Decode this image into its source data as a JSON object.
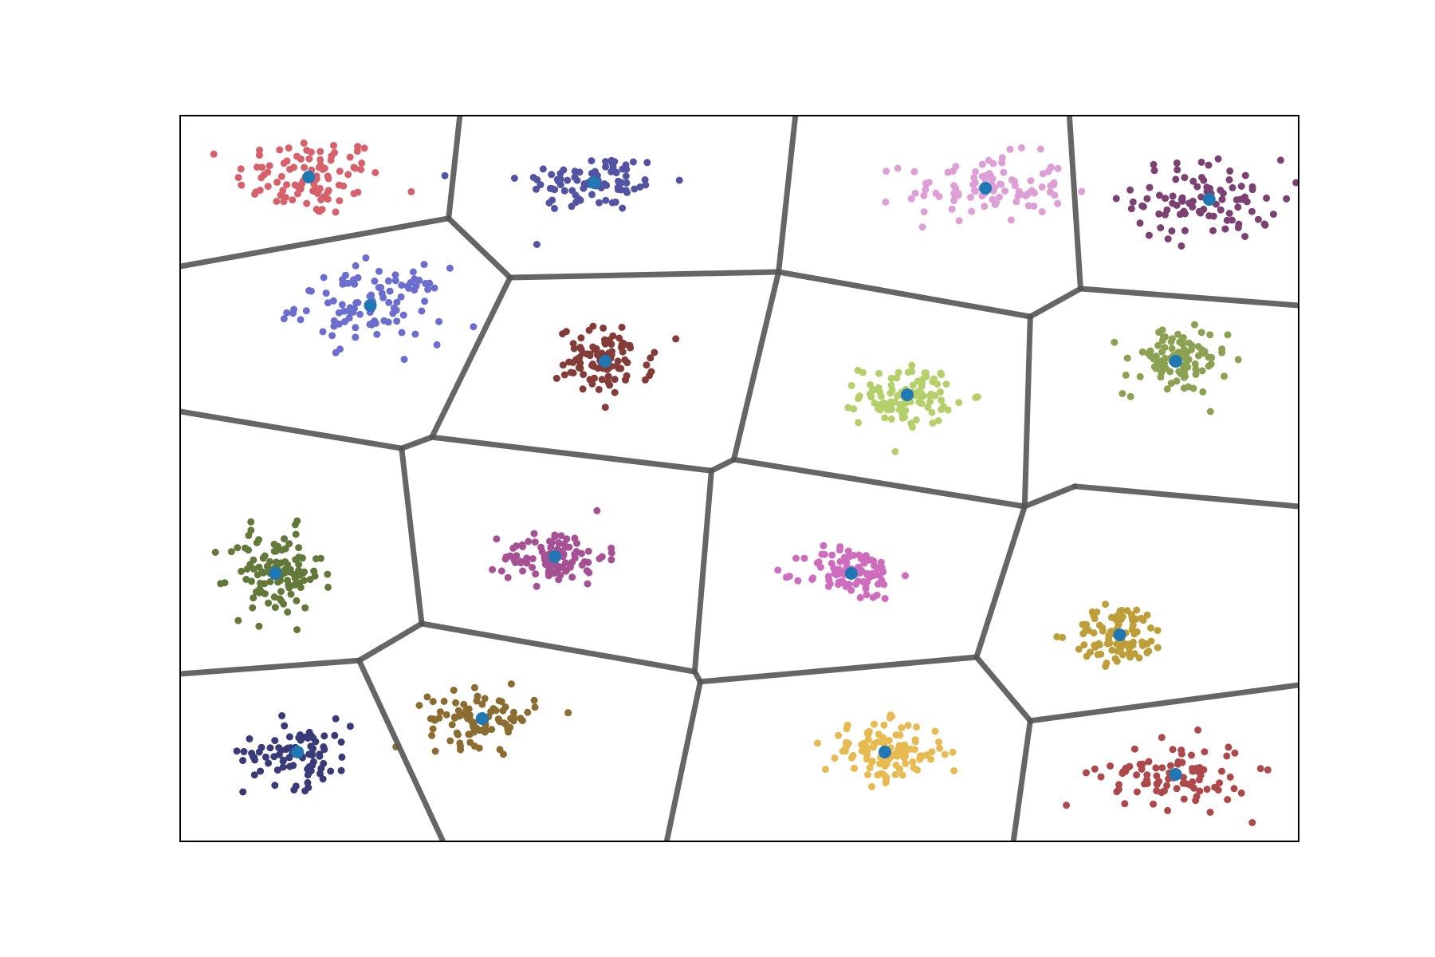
{
  "chart_data": {
    "type": "scatter",
    "xlim": [
      0,
      10
    ],
    "ylim": [
      0,
      6.5
    ],
    "grid": false,
    "ticks_visible": false,
    "legend": "none",
    "centroid_color": "#1f77b4",
    "edge_color": "#555555",
    "clusters": [
      {
        "center": [
          1.15,
          5.95
        ],
        "spread": [
          0.55,
          0.3
        ],
        "n": 95,
        "color": "#d6616b"
      },
      {
        "center": [
          3.7,
          5.9
        ],
        "spread": [
          0.55,
          0.22
        ],
        "n": 85,
        "color": "#5254a3"
      },
      {
        "center": [
          7.2,
          5.85
        ],
        "spread": [
          0.6,
          0.25
        ],
        "n": 95,
        "color": "#de9ed6"
      },
      {
        "center": [
          9.2,
          5.75
        ],
        "spread": [
          0.55,
          0.3
        ],
        "n": 90,
        "color": "#7b4173"
      },
      {
        "center": [
          1.7,
          4.8
        ],
        "spread": [
          0.55,
          0.28
        ],
        "n": 100,
        "color": "#6b6ecf"
      },
      {
        "center": [
          3.8,
          4.3
        ],
        "spread": [
          0.35,
          0.25
        ],
        "n": 95,
        "color": "#843c39"
      },
      {
        "center": [
          6.5,
          4.0
        ],
        "spread": [
          0.35,
          0.22
        ],
        "n": 100,
        "color": "#b5cf6b"
      },
      {
        "center": [
          8.9,
          4.3
        ],
        "spread": [
          0.38,
          0.25
        ],
        "n": 95,
        "color": "#8ca252"
      },
      {
        "center": [
          0.85,
          2.4
        ],
        "spread": [
          0.35,
          0.32
        ],
        "n": 110,
        "color": "#637939"
      },
      {
        "center": [
          3.35,
          2.55
        ],
        "spread": [
          0.38,
          0.2
        ],
        "n": 95,
        "color": "#a55194"
      },
      {
        "center": [
          6.0,
          2.4
        ],
        "spread": [
          0.35,
          0.2
        ],
        "n": 95,
        "color": "#ce6dbd"
      },
      {
        "center": [
          8.4,
          1.85
        ],
        "spread": [
          0.35,
          0.22
        ],
        "n": 90,
        "color": "#bd9e39"
      },
      {
        "center": [
          1.05,
          0.8
        ],
        "spread": [
          0.4,
          0.25
        ],
        "n": 85,
        "color": "#393b79"
      },
      {
        "center": [
          2.7,
          1.1
        ],
        "spread": [
          0.4,
          0.2
        ],
        "n": 90,
        "color": "#8c6d31"
      },
      {
        "center": [
          6.3,
          0.8
        ],
        "spread": [
          0.45,
          0.22
        ],
        "n": 110,
        "color": "#e7ba52"
      },
      {
        "center": [
          8.9,
          0.6
        ],
        "spread": [
          0.55,
          0.25
        ],
        "n": 90,
        "color": "#ad494a"
      }
    ],
    "voronoi_edges": [
      [
        [
          0.0,
          5.15
        ],
        [
          2.4,
          5.58
        ]
      ],
      [
        [
          2.4,
          5.58
        ],
        [
          2.5,
          6.5
        ]
      ],
      [
        [
          2.4,
          5.58
        ],
        [
          2.95,
          5.05
        ]
      ],
      [
        [
          2.95,
          5.05
        ],
        [
          5.35,
          5.1
        ]
      ],
      [
        [
          5.35,
          5.1
        ],
        [
          5.5,
          6.5
        ]
      ],
      [
        [
          5.35,
          5.1
        ],
        [
          7.6,
          4.7
        ]
      ],
      [
        [
          7.6,
          4.7
        ],
        [
          8.05,
          4.95
        ]
      ],
      [
        [
          8.05,
          4.95
        ],
        [
          7.95,
          6.5
        ]
      ],
      [
        [
          8.05,
          4.95
        ],
        [
          10.0,
          4.8
        ]
      ],
      [
        [
          2.95,
          5.05
        ],
        [
          2.25,
          3.62
        ]
      ],
      [
        [
          2.25,
          3.62
        ],
        [
          1.98,
          3.52
        ]
      ],
      [
        [
          1.98,
          3.52
        ],
        [
          0.0,
          3.85
        ]
      ],
      [
        [
          2.25,
          3.62
        ],
        [
          4.75,
          3.32
        ]
      ],
      [
        [
          4.75,
          3.32
        ],
        [
          4.95,
          3.42
        ]
      ],
      [
        [
          4.95,
          3.42
        ],
        [
          5.35,
          5.1
        ]
      ],
      [
        [
          4.95,
          3.42
        ],
        [
          7.55,
          3.0
        ]
      ],
      [
        [
          7.55,
          3.0
        ],
        [
          7.6,
          4.7
        ]
      ],
      [
        [
          7.55,
          3.0
        ],
        [
          8.0,
          3.18
        ]
      ],
      [
        [
          8.0,
          3.18
        ],
        [
          10.0,
          3.0
        ]
      ],
      [
        [
          1.98,
          3.52
        ],
        [
          2.16,
          1.95
        ]
      ],
      [
        [
          2.16,
          1.95
        ],
        [
          1.6,
          1.62
        ]
      ],
      [
        [
          1.6,
          1.62
        ],
        [
          0.0,
          1.5
        ]
      ],
      [
        [
          1.6,
          1.62
        ],
        [
          2.35,
          0.0
        ]
      ],
      [
        [
          2.16,
          1.95
        ],
        [
          4.6,
          1.52
        ]
      ],
      [
        [
          4.6,
          1.52
        ],
        [
          4.75,
          3.32
        ]
      ],
      [
        [
          4.6,
          1.52
        ],
        [
          4.65,
          1.43
        ]
      ],
      [
        [
          4.65,
          1.43
        ],
        [
          4.35,
          0.0
        ]
      ],
      [
        [
          4.65,
          1.43
        ],
        [
          7.12,
          1.65
        ]
      ],
      [
        [
          7.12,
          1.65
        ],
        [
          7.55,
          3.0
        ]
      ],
      [
        [
          7.12,
          1.65
        ],
        [
          7.6,
          1.08
        ]
      ],
      [
        [
          7.6,
          1.08
        ],
        [
          10.0,
          1.4
        ]
      ],
      [
        [
          7.6,
          1.08
        ],
        [
          7.45,
          0.0
        ]
      ]
    ]
  }
}
